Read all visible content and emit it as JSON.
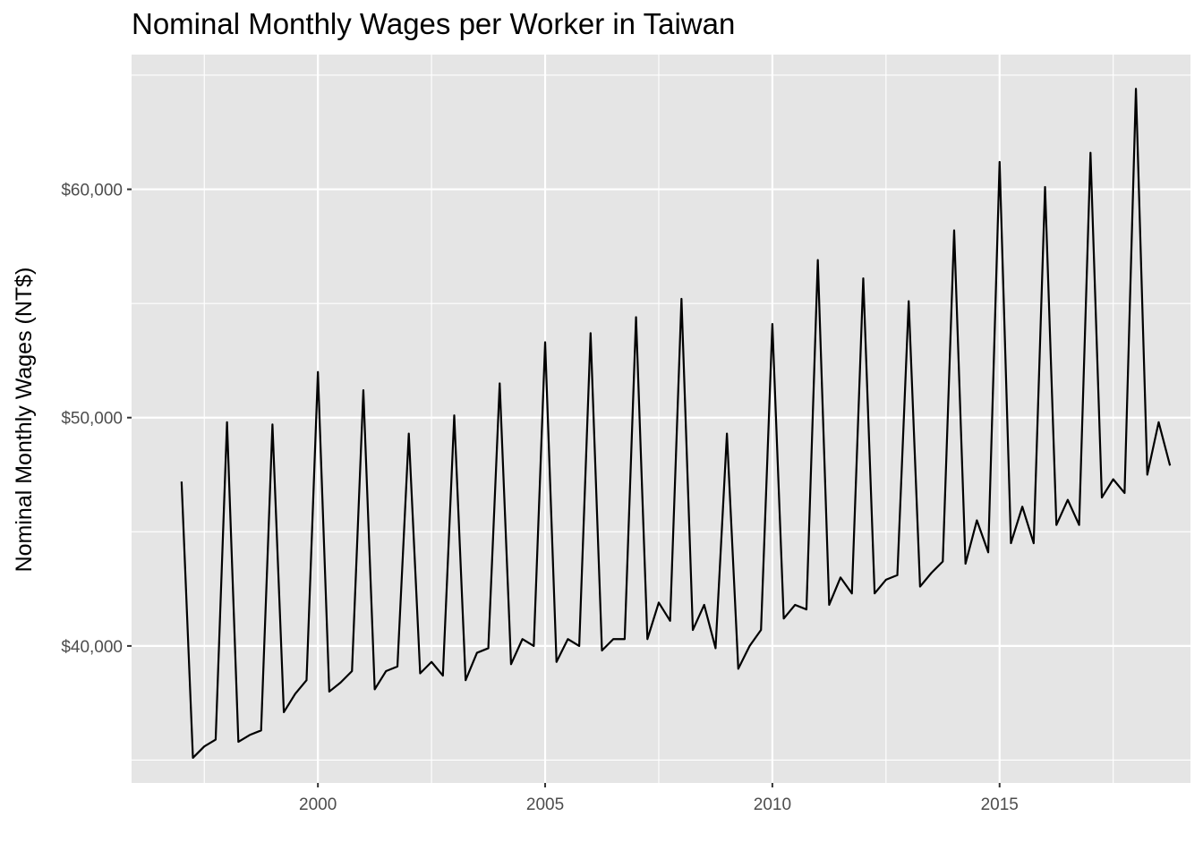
{
  "chart_data": {
    "type": "line",
    "title": "Nominal Monthly Wages per Worker in Taiwan",
    "xlabel": "",
    "ylabel": "Nominal Monthly Wages (NT$)",
    "x_ticks": [
      2000,
      2005,
      2010,
      2015
    ],
    "y_ticks": [
      "$40,000",
      "$50,000",
      "$60,000"
    ],
    "y_tick_values": [
      40000,
      50000,
      60000
    ],
    "xlim": [
      1995.9,
      2019.2
    ],
    "ylim": [
      34000,
      65900
    ],
    "grid": true,
    "line_color": "#000000",
    "panel_background": "#e5e5e5",
    "grid_color": "#ffffff",
    "series": [
      {
        "x": [
          1997.0,
          1997.25,
          1997.5,
          1997.75,
          1998.0,
          1998.25,
          1998.5,
          1998.75,
          1999.0,
          1999.25,
          1999.5,
          1999.75,
          2000.0,
          2000.25,
          2000.5,
          2000.75,
          2001.0,
          2001.25,
          2001.5,
          2001.75,
          2002.0,
          2002.25,
          2002.5,
          2002.75,
          2003.0,
          2003.25,
          2003.5,
          2003.75,
          2004.0,
          2004.25,
          2004.5,
          2004.75,
          2005.0,
          2005.25,
          2005.5,
          2005.75,
          2006.0,
          2006.25,
          2006.5,
          2006.75,
          2007.0,
          2007.25,
          2007.5,
          2007.75,
          2008.0,
          2008.25,
          2008.5,
          2008.75,
          2009.0,
          2009.25,
          2009.5,
          2009.75,
          2010.0,
          2010.25,
          2010.5,
          2010.75,
          2011.0,
          2011.25,
          2011.5,
          2011.75,
          2012.0,
          2012.25,
          2012.5,
          2012.75,
          2013.0,
          2013.25,
          2013.5,
          2013.75,
          2014.0,
          2014.25,
          2014.5,
          2014.75,
          2015.0,
          2015.25,
          2015.5,
          2015.75,
          2016.0,
          2016.25,
          2016.5,
          2016.75,
          2017.0,
          2017.25,
          2017.5,
          2017.75,
          2018.0,
          2018.25,
          2018.5,
          2018.75
        ],
        "y": [
          47200,
          35100,
          35600,
          35900,
          49800,
          35800,
          36100,
          36300,
          49700,
          37100,
          37900,
          38500,
          52000,
          38000,
          38400,
          38900,
          51200,
          38100,
          38900,
          39100,
          49300,
          38800,
          39300,
          38700,
          50100,
          38500,
          39700,
          39900,
          51500,
          39200,
          40300,
          40000,
          53300,
          39300,
          40300,
          40000,
          53700,
          39800,
          40300,
          40300,
          54400,
          40300,
          41900,
          41100,
          55200,
          40700,
          41800,
          39900,
          49300,
          39000,
          40000,
          40700,
          54100,
          41200,
          41800,
          41600,
          56900,
          41800,
          43000,
          42300,
          56100,
          42300,
          42900,
          43100,
          55100,
          42600,
          43200,
          43700,
          58200,
          43600,
          45500,
          44100,
          61200,
          44500,
          46100,
          44500,
          60100,
          45300,
          46400,
          45300,
          61600,
          46500,
          47300,
          46700,
          64400,
          47500,
          49800,
          47900
        ]
      }
    ]
  }
}
